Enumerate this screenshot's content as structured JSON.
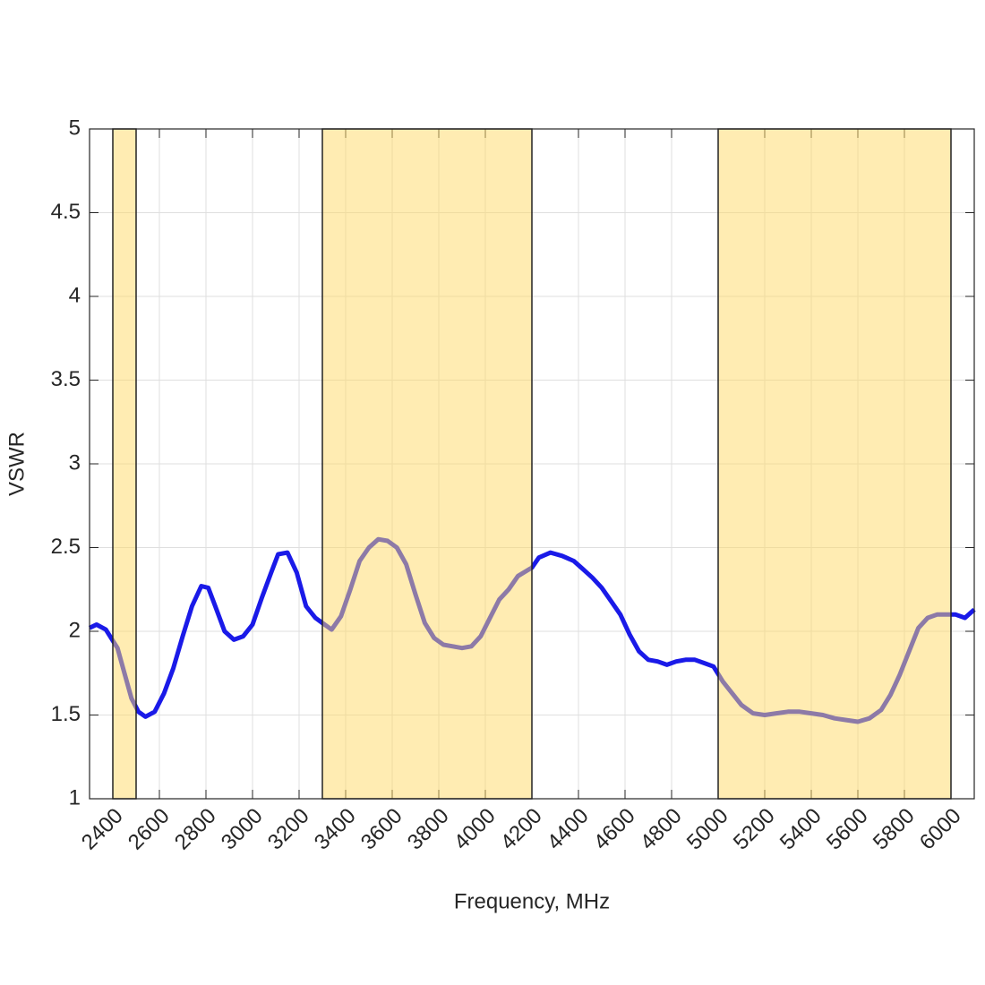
{
  "chart_data": {
    "type": "line",
    "xlabel": "Frequency, MHz",
    "ylabel": "VSWR",
    "x": [
      2300,
      2330,
      2370,
      2420,
      2450,
      2480,
      2510,
      2540,
      2580,
      2620,
      2660,
      2700,
      2740,
      2780,
      2810,
      2840,
      2880,
      2920,
      2960,
      3000,
      3040,
      3080,
      3110,
      3150,
      3190,
      3230,
      3270,
      3300,
      3340,
      3380,
      3420,
      3460,
      3500,
      3540,
      3580,
      3620,
      3660,
      3700,
      3740,
      3780,
      3820,
      3860,
      3900,
      3940,
      3980,
      4020,
      4060,
      4100,
      4140,
      4200,
      4230,
      4280,
      4330,
      4380,
      4420,
      4460,
      4500,
      4540,
      4580,
      4620,
      4660,
      4700,
      4740,
      4780,
      4820,
      4860,
      4900,
      4940,
      4980,
      5020,
      5060,
      5100,
      5150,
      5200,
      5250,
      5300,
      5350,
      5400,
      5450,
      5500,
      5550,
      5600,
      5650,
      5700,
      5740,
      5780,
      5820,
      5860,
      5900,
      5940,
      5980,
      6020,
      6060,
      6100
    ],
    "series": [
      {
        "color": "#1a1ae8",
        "values": [
          2.02,
          2.04,
          2.01,
          1.9,
          1.75,
          1.6,
          1.52,
          1.49,
          1.52,
          1.63,
          1.78,
          1.97,
          2.15,
          2.27,
          2.26,
          2.15,
          2.0,
          1.95,
          1.97,
          2.04,
          2.2,
          2.35,
          2.46,
          2.47,
          2.35,
          2.15,
          2.08,
          2.05,
          2.01,
          2.09,
          2.25,
          2.42,
          2.5,
          2.55,
          2.54,
          2.5,
          2.4,
          2.22,
          2.05,
          1.96,
          1.92,
          1.91,
          1.9,
          1.91,
          1.97,
          2.08,
          2.19,
          2.25,
          2.33,
          2.38,
          2.44,
          2.47,
          2.45,
          2.42,
          2.37,
          2.32,
          2.26,
          2.18,
          2.1,
          1.98,
          1.88,
          1.83,
          1.82,
          1.8,
          1.82,
          1.83,
          1.83,
          1.81,
          1.79,
          1.7,
          1.63,
          1.56,
          1.51,
          1.5,
          1.51,
          1.52,
          1.52,
          1.51,
          1.5,
          1.48,
          1.47,
          1.46,
          1.48,
          1.53,
          1.62,
          1.74,
          1.88,
          2.02,
          2.08,
          2.1,
          2.1,
          2.1,
          2.08,
          2.13
        ]
      }
    ],
    "bands": [
      [
        2400,
        2500
      ],
      [
        3300,
        4200
      ],
      [
        5000,
        6000
      ]
    ],
    "band_color": "#ffd966",
    "xlim": [
      2300,
      6100
    ],
    "xticks": [
      2400,
      2600,
      2800,
      3000,
      3200,
      3400,
      3600,
      3800,
      4000,
      4200,
      4400,
      4600,
      4800,
      5000,
      5200,
      5400,
      5600,
      5800,
      6000
    ],
    "ylim": [
      1,
      5
    ],
    "yticks": [
      1,
      1.5,
      2,
      2.5,
      3,
      3.5,
      4,
      4.5,
      5
    ],
    "grid": true
  }
}
